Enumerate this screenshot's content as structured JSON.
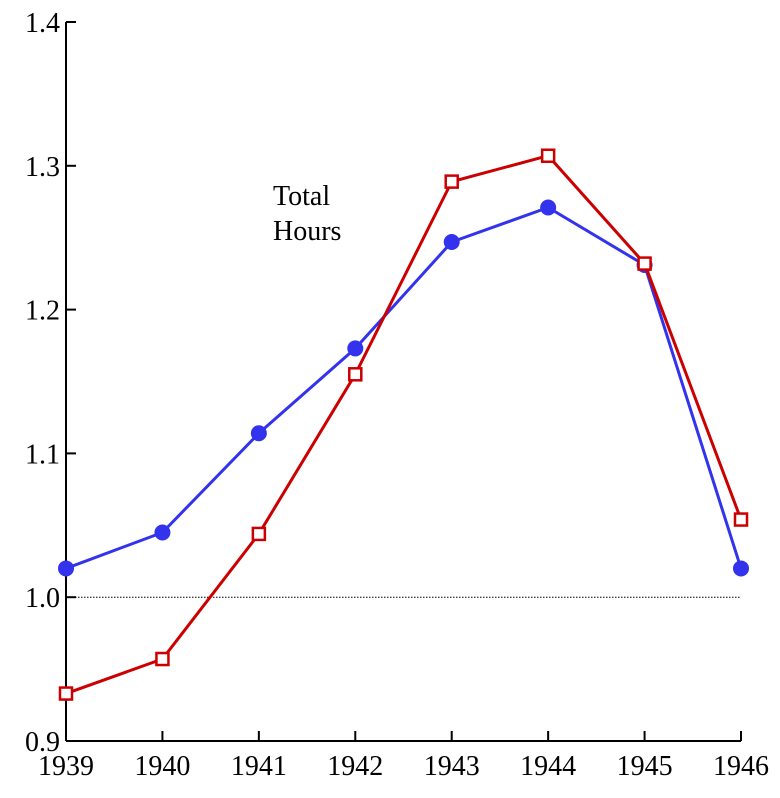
{
  "chart_data": {
    "type": "line",
    "annotation_lines": [
      "Total",
      "Hours"
    ],
    "x": [
      1939,
      1940,
      1941,
      1942,
      1943,
      1944,
      1945,
      1946
    ],
    "series": [
      {
        "color": "#3333ee",
        "marker": "circle",
        "values": [
          1.02,
          1.045,
          1.114,
          1.173,
          1.247,
          1.271,
          1.231,
          1.02
        ]
      },
      {
        "color": "#cc0000",
        "marker": "square",
        "values": [
          0.933,
          0.957,
          1.044,
          1.155,
          1.289,
          1.307,
          1.232,
          1.054
        ]
      }
    ],
    "xlim": [
      1939,
      1946
    ],
    "xticks": [
      1939,
      1940,
      1941,
      1942,
      1943,
      1944,
      1945,
      1946
    ],
    "ylim": [
      0.9,
      1.4
    ],
    "yticks": [
      {
        "value": 0.9,
        "label": "0.9"
      },
      {
        "value": 1.0,
        "label": "1.0"
      },
      {
        "value": 1.1,
        "label": "1.1"
      },
      {
        "value": 1.2,
        "label": "1.2"
      },
      {
        "value": 1.3,
        "label": "1.3"
      },
      {
        "value": 1.4,
        "label": "1.4"
      }
    ],
    "reference_line": 1
  }
}
